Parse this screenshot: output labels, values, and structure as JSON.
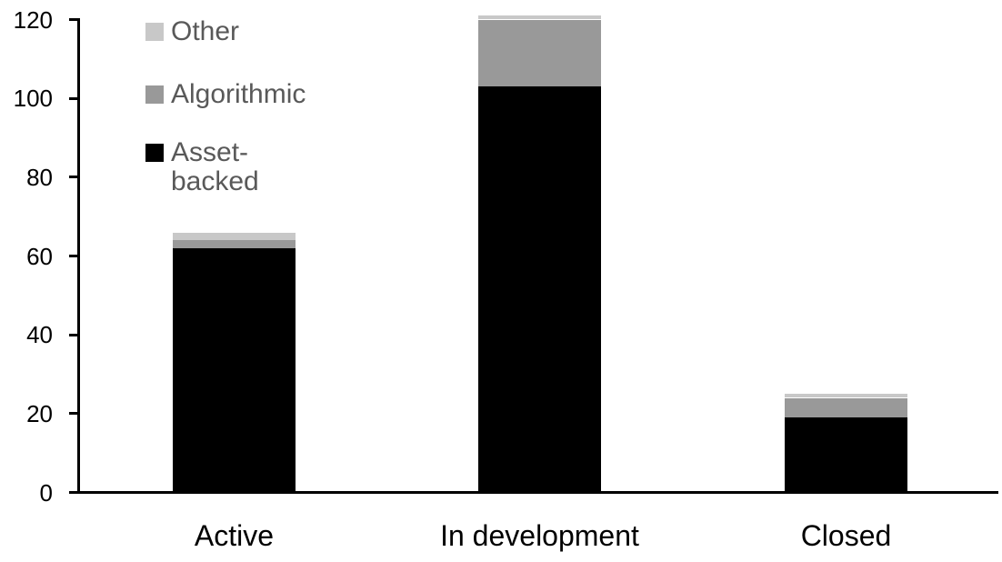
{
  "chart_data": {
    "type": "bar",
    "stacked": true,
    "title": "",
    "xlabel": "",
    "ylabel": "",
    "categories": [
      "Active",
      "In development",
      "Closed"
    ],
    "series": [
      {
        "name": "Asset-backed",
        "color": "#000000",
        "values": [
          62,
          103,
          19
        ]
      },
      {
        "name": "Algorithmic",
        "color": "#999999",
        "values": [
          2,
          17,
          5
        ]
      },
      {
        "name": "Other",
        "color": "#C8C8C8",
        "values": [
          2,
          1,
          1
        ]
      }
    ],
    "totals": [
      66,
      121,
      25
    ],
    "ylim": [
      0,
      120
    ],
    "yticks": [
      0,
      20,
      40,
      60,
      80,
      100,
      120
    ],
    "grid": false,
    "legend": {
      "position": "top-left",
      "order": [
        "Other",
        "Algorithmic",
        "Asset-backed"
      ],
      "text_color": "#595959"
    },
    "axis_color": "#000000",
    "background": "#FFFFFF"
  }
}
